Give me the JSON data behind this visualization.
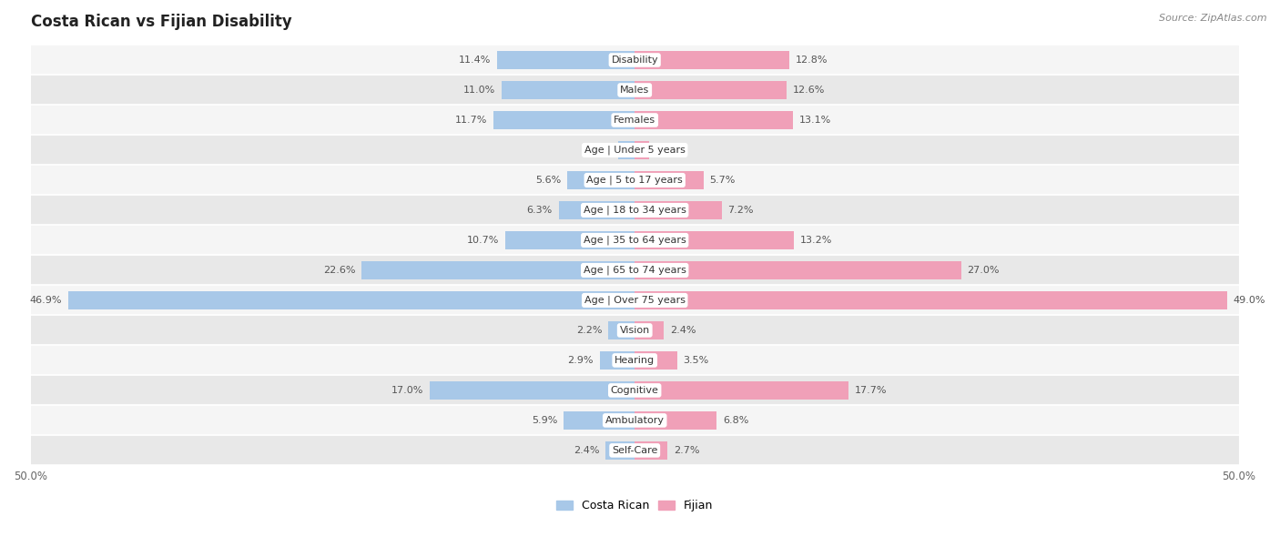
{
  "title": "Costa Rican vs Fijian Disability",
  "source": "Source: ZipAtlas.com",
  "categories": [
    "Disability",
    "Males",
    "Females",
    "Age | Under 5 years",
    "Age | 5 to 17 years",
    "Age | 18 to 34 years",
    "Age | 35 to 64 years",
    "Age | 65 to 74 years",
    "Age | Over 75 years",
    "Vision",
    "Hearing",
    "Cognitive",
    "Ambulatory",
    "Self-Care"
  ],
  "costa_rican": [
    11.4,
    11.0,
    11.7,
    1.4,
    5.6,
    6.3,
    10.7,
    22.6,
    46.9,
    2.2,
    2.9,
    17.0,
    5.9,
    2.4
  ],
  "fijian": [
    12.8,
    12.6,
    13.1,
    1.2,
    5.7,
    7.2,
    13.2,
    27.0,
    49.0,
    2.4,
    3.5,
    17.7,
    6.8,
    2.7
  ],
  "max_val": 50.0,
  "blue_color": "#a8c8e8",
  "pink_color": "#f0a0b8",
  "bar_height": 0.62,
  "row_color_light": "#f5f5f5",
  "row_color_dark": "#e8e8e8",
  "value_label_fontsize": 8.0,
  "category_label_fontsize": 8.0,
  "title_fontsize": 12,
  "axis_label_fontsize": 8.5,
  "legend_fontsize": 9
}
